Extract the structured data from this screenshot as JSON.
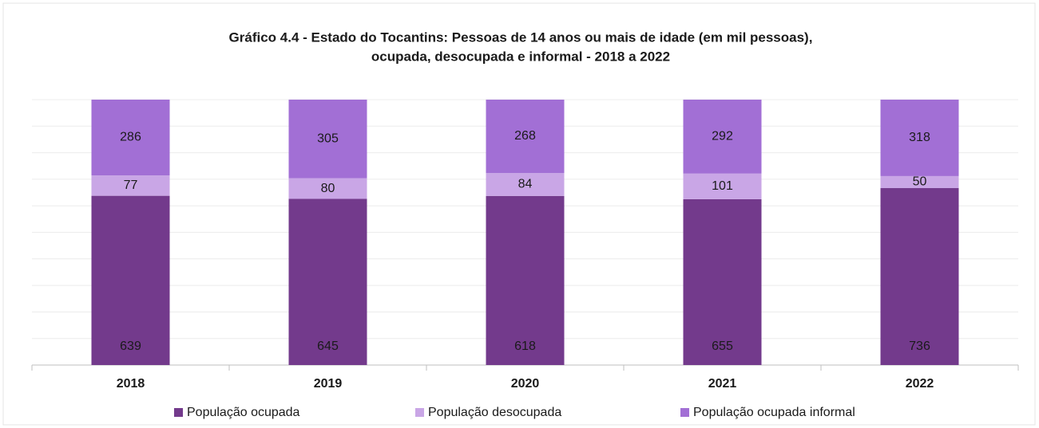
{
  "chart_data": {
    "type": "bar",
    "stacking": "percent",
    "title": [
      "Gráfico 4.4 - Estado do Tocantins: Pessoas de 14 anos ou mais de idade (em mil pessoas),",
      "ocupada, desocupada e informal - 2018 a 2022"
    ],
    "categories": [
      "2018",
      "2019",
      "2020",
      "2021",
      "2022"
    ],
    "series": [
      {
        "name": "População ocupada",
        "color": "#733a8c",
        "values": [
          639,
          645,
          618,
          655,
          736
        ]
      },
      {
        "name": "População desocupada",
        "color": "#c9a6e6",
        "values": [
          77,
          80,
          84,
          101,
          50
        ]
      },
      {
        "name": "População ocupada informal",
        "color": "#a26fd5",
        "values": [
          286,
          305,
          268,
          292,
          318
        ]
      }
    ],
    "grid": true,
    "legend": "bottom"
  }
}
